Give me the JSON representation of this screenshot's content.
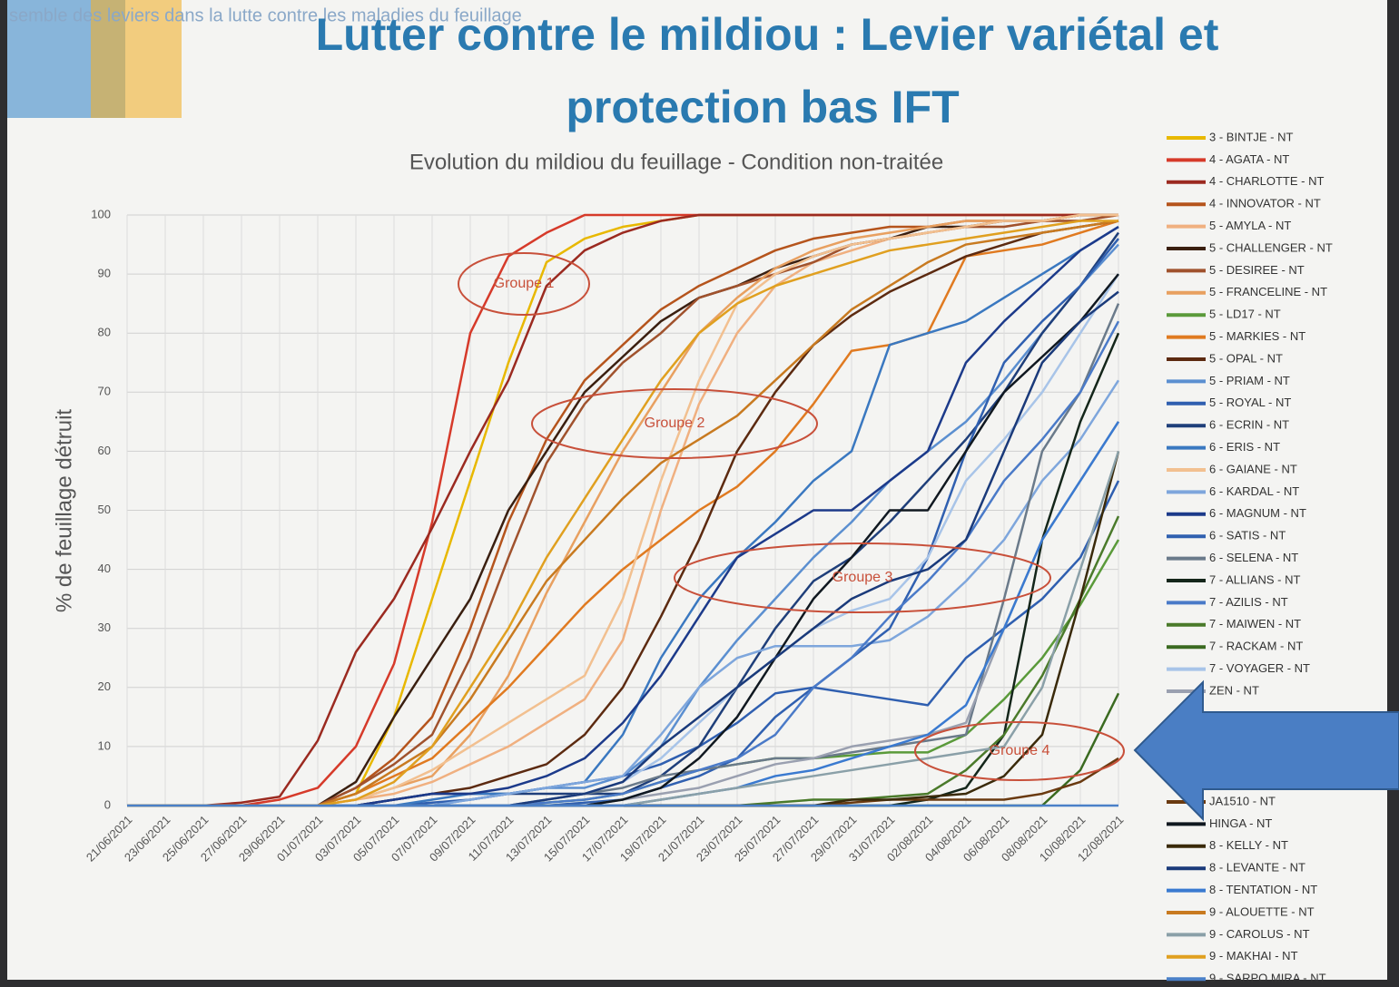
{
  "slide": {
    "header": "semble des leviers dans la lutte contre les maladies du feuillage",
    "title_line1": "Lutter contre le mildiou : Levier variétal et",
    "title_line2": "protection bas IFT"
  },
  "chart_data": {
    "type": "line",
    "title": "Evolution du mildiou du feuillage - Condition non-traitée",
    "y_label": "% de feuillage détruit",
    "categories": [
      "21/06/2021",
      "23/06/2021",
      "25/06/2021",
      "27/06/2021",
      "29/06/2021",
      "01/07/2021",
      "03/07/2021",
      "05/07/2021",
      "07/07/2021",
      "09/07/2021",
      "11/07/2021",
      "13/07/2021",
      "15/07/2021",
      "17/07/2021",
      "19/07/2021",
      "21/07/2021",
      "23/07/2021",
      "25/07/2021",
      "27/07/2021",
      "29/07/2021",
      "31/07/2021",
      "02/08/2021",
      "04/08/2021",
      "06/08/2021",
      "08/08/2021",
      "10/08/2021",
      "12/08/2021"
    ],
    "ylim": [
      0,
      100
    ],
    "yticks": [
      0,
      10,
      20,
      30,
      40,
      50,
      60,
      70,
      80,
      90,
      100
    ],
    "grid": true,
    "annotations": [
      "Groupe 1",
      "Groupe 2",
      "Groupe 3",
      "Groupe 4"
    ],
    "series": [
      {
        "name": "3 - BINTJE - NT",
        "color": "#e8b800",
        "values": [
          0,
          0,
          0,
          0,
          0,
          0,
          2,
          15,
          35,
          55,
          75,
          92,
          96,
          98,
          99,
          100,
          100,
          100,
          100,
          100,
          100,
          100,
          100,
          100,
          100,
          100,
          100
        ]
      },
      {
        "name": "4 - AGATA - NT",
        "color": "#d63a2a",
        "values": [
          0,
          0,
          0,
          0,
          1,
          3,
          10,
          24,
          48,
          80,
          93,
          97,
          100,
          100,
          100,
          100,
          100,
          100,
          100,
          100,
          100,
          100,
          100,
          100,
          100,
          100,
          100
        ]
      },
      {
        "name": "4 - CHARLOTTE - NT",
        "color": "#9b2a20",
        "values": [
          0,
          0,
          0,
          0.5,
          1.5,
          11,
          26,
          35,
          47,
          60,
          72,
          88,
          94,
          97,
          99,
          100,
          100,
          100,
          100,
          100,
          100,
          100,
          100,
          100,
          100,
          100,
          100
        ]
      },
      {
        "name": "4 - INNOVATOR - NT",
        "color": "#b5541c",
        "values": [
          0,
          0,
          0,
          0,
          0,
          0,
          3,
          8,
          15,
          30,
          48,
          62,
          72,
          78,
          84,
          88,
          91,
          94,
          96,
          97,
          98,
          98,
          99,
          99,
          99,
          100,
          100
        ]
      },
      {
        "name": "5 - AMYLA - NT",
        "color": "#f0b080",
        "values": [
          0,
          0,
          0,
          0,
          0,
          0,
          1,
          2,
          4,
          7,
          10,
          14,
          18,
          28,
          50,
          68,
          80,
          88,
          92,
          94,
          96,
          97,
          98,
          98,
          99,
          99,
          100
        ]
      },
      {
        "name": "5 - CHALLENGER - NT",
        "color": "#3a1f10",
        "values": [
          0,
          0,
          0,
          0,
          0,
          0,
          4,
          15,
          25,
          35,
          50,
          60,
          70,
          76,
          82,
          86,
          88,
          91,
          93,
          95,
          96,
          98,
          98,
          99,
          99,
          100,
          100
        ]
      },
      {
        "name": "5 - DESIREE - NT",
        "color": "#a0522d",
        "values": [
          0,
          0,
          0,
          0,
          0,
          0,
          3,
          7,
          12,
          25,
          42,
          58,
          68,
          75,
          80,
          86,
          88,
          90,
          92,
          95,
          96,
          97,
          98,
          98,
          99,
          99,
          100
        ]
      },
      {
        "name": "5 - FRANCELINE - NT",
        "color": "#e8a060",
        "values": [
          0,
          0,
          0,
          0,
          0,
          0,
          1,
          3,
          5,
          12,
          22,
          36,
          48,
          60,
          70,
          80,
          86,
          91,
          94,
          96,
          97,
          98,
          99,
          99,
          99,
          100,
          100
        ]
      },
      {
        "name": "5 - LD17 - NT",
        "color": "#5a9a3a",
        "values": [
          0,
          0,
          0,
          0,
          0,
          0,
          0,
          0,
          0,
          0,
          0,
          0.5,
          1,
          2,
          4,
          6,
          7,
          8,
          8,
          8.5,
          9,
          9,
          12,
          18,
          25,
          34,
          45
        ]
      },
      {
        "name": "5 - MARKIES - NT",
        "color": "#e07a20",
        "values": [
          0,
          0,
          0,
          0,
          0,
          0,
          2,
          5,
          8,
          14,
          20,
          27,
          34,
          40,
          45,
          50,
          54,
          60,
          68,
          77,
          78,
          80,
          93,
          94,
          95,
          97,
          99
        ]
      },
      {
        "name": "5 - OPAL - NT",
        "color": "#5c2a10",
        "values": [
          0,
          0,
          0,
          0,
          0,
          0,
          0,
          1,
          2,
          3,
          5,
          7,
          12,
          20,
          32,
          45,
          60,
          70,
          78,
          83,
          87,
          90,
          93,
          95,
          97,
          98,
          99
        ]
      },
      {
        "name": "5 - PRIAM - NT",
        "color": "#5b8fd0",
        "values": [
          0,
          0,
          0,
          0,
          0,
          0,
          0,
          0,
          0,
          1,
          2,
          3,
          3,
          5,
          10,
          20,
          28,
          35,
          42,
          48,
          55,
          60,
          65,
          72,
          80,
          88,
          95
        ]
      },
      {
        "name": "5 - ROYAL - NT",
        "color": "#2f5fb0",
        "values": [
          0,
          0,
          0,
          0,
          0,
          0,
          0,
          0,
          0.5,
          1,
          2,
          3,
          4,
          5,
          7,
          10,
          14,
          19,
          20,
          19,
          18,
          17,
          25,
          30,
          35,
          42,
          55
        ]
      },
      {
        "name": "6 - ECRIN - NT",
        "color": "#1f3f7a",
        "values": [
          0,
          0,
          0,
          0,
          0,
          0,
          0,
          1,
          2,
          2,
          2,
          2,
          2,
          2,
          5,
          10,
          20,
          30,
          38,
          42,
          48,
          55,
          62,
          70,
          80,
          88,
          97
        ]
      },
      {
        "name": "6 - ERIS - NT",
        "color": "#3a78c0",
        "values": [
          0,
          0,
          0,
          0,
          0,
          0,
          0,
          0,
          1,
          2,
          2,
          3,
          4,
          12,
          25,
          35,
          42,
          48,
          55,
          60,
          78,
          80,
          82,
          86,
          90,
          94,
          98
        ]
      },
      {
        "name": "6 - GAIANE - NT",
        "color": "#f2c090",
        "values": [
          0,
          0,
          0,
          0,
          0,
          0,
          1,
          3,
          6,
          10,
          14,
          18,
          22,
          35,
          55,
          72,
          85,
          90,
          93,
          95,
          96,
          97,
          98,
          99,
          99,
          100,
          100
        ]
      },
      {
        "name": "6 - KARDAL - NT",
        "color": "#7ea6dc",
        "values": [
          0,
          0,
          0,
          0,
          0,
          0,
          0,
          0,
          0,
          1,
          2,
          3,
          4,
          5,
          12,
          20,
          25,
          27,
          27,
          27,
          28,
          32,
          38,
          45,
          55,
          62,
          72
        ]
      },
      {
        "name": "6 - MAGNUM - NT",
        "color": "#1c3a8a",
        "values": [
          0,
          0,
          0,
          0,
          0,
          0,
          0,
          1,
          2,
          2,
          3,
          5,
          8,
          14,
          22,
          32,
          42,
          46,
          50,
          50,
          55,
          60,
          75,
          82,
          88,
          94,
          98
        ]
      },
      {
        "name": "6 - SATIS - NT",
        "color": "#3060b0",
        "values": [
          0,
          0,
          0,
          0,
          0,
          0,
          0,
          0,
          0,
          0,
          0,
          0,
          0.5,
          1,
          3,
          5,
          8,
          15,
          20,
          25,
          30,
          42,
          60,
          75,
          82,
          88,
          96
        ]
      },
      {
        "name": "6 - SELENA - NT",
        "color": "#6a7a8a",
        "values": [
          0,
          0,
          0,
          0,
          0,
          0,
          0,
          0,
          0,
          0,
          0,
          1,
          2,
          3,
          5,
          6,
          7,
          8,
          8,
          9,
          10,
          11,
          12,
          35,
          60,
          70,
          85
        ]
      },
      {
        "name": "7 - ALLIANS - NT",
        "color": "#14261a",
        "values": [
          0,
          0,
          0,
          0,
          0,
          0,
          0,
          0,
          0,
          0,
          0,
          0,
          0,
          0,
          0,
          0,
          0,
          0,
          0,
          0,
          0,
          1,
          3,
          12,
          45,
          65,
          80
        ]
      },
      {
        "name": "7 - AZILIS - NT",
        "color": "#4a7ac8",
        "values": [
          0,
          0,
          0,
          0,
          0,
          0,
          0,
          0,
          0,
          0,
          0,
          0.5,
          1,
          2,
          4,
          6,
          8,
          12,
          20,
          25,
          32,
          38,
          45,
          55,
          62,
          70,
          82
        ]
      },
      {
        "name": "7 - MAIWEN - NT",
        "color": "#4a7a2a",
        "values": [
          0,
          0,
          0,
          0,
          0,
          0,
          0,
          0,
          0,
          0,
          0,
          0,
          0,
          0,
          0,
          0,
          0,
          0.5,
          1,
          1,
          1.5,
          2,
          6,
          12,
          22,
          35,
          49
        ]
      },
      {
        "name": "7 - RACKAM - NT",
        "color": "#3a6a20",
        "values": [
          0,
          0,
          0,
          0,
          0,
          0,
          0,
          0,
          0,
          0,
          0,
          0,
          0,
          0,
          0,
          0,
          0,
          0,
          0,
          0,
          0,
          0,
          0,
          0,
          0,
          6,
          19
        ]
      },
      {
        "name": "7 - VOYAGER - NT",
        "color": "#a8c4e8",
        "values": [
          0,
          0,
          0,
          0,
          0,
          0,
          0,
          0,
          0,
          0,
          0,
          1,
          2,
          4,
          8,
          14,
          20,
          25,
          30,
          33,
          35,
          42,
          55,
          62,
          70,
          80,
          90
        ]
      },
      {
        "name": "ZEN - NT",
        "color": "#9aa0b0",
        "values": [
          0,
          0,
          0,
          0,
          0,
          0,
          0,
          0,
          0,
          0,
          0,
          0,
          0,
          1,
          2,
          3,
          5,
          7,
          8,
          10,
          11,
          12,
          14,
          30,
          45,
          55,
          65
        ]
      },
      {
        "name": "JA1510 - NT",
        "color": "#6a3a10",
        "values": [
          0,
          0,
          0,
          0,
          0,
          0,
          0,
          0,
          0,
          0,
          0,
          0,
          0,
          0,
          0,
          0,
          0,
          0,
          0,
          0.5,
          1,
          1,
          1,
          1,
          2,
          4,
          8
        ]
      },
      {
        "name": "HINGA - NT",
        "color": "#101820",
        "values": [
          0,
          0,
          0,
          0,
          0,
          0,
          0,
          0,
          0,
          0,
          0,
          0,
          0,
          1,
          3,
          8,
          15,
          25,
          35,
          42,
          50,
          50,
          60,
          70,
          76,
          82,
          90
        ]
      },
      {
        "name": "8 - KELLY - NT",
        "color": "#3a2a0a",
        "values": [
          0,
          0,
          0,
          0,
          0,
          0,
          0,
          0,
          0,
          0,
          0,
          0,
          0,
          0,
          0,
          0,
          0,
          0,
          0,
          1,
          1,
          1.5,
          2,
          5,
          12,
          35,
          60
        ]
      },
      {
        "name": "8 - LEVANTE - NT",
        "color": "#1a3a7a",
        "values": [
          0,
          0,
          0,
          0,
          0,
          0,
          0,
          0,
          0,
          0,
          0,
          1,
          2,
          4,
          10,
          15,
          20,
          25,
          30,
          35,
          38,
          40,
          45,
          60,
          75,
          82,
          87
        ]
      },
      {
        "name": "8 - TENTATION - NT",
        "color": "#3a7ad0",
        "values": [
          0,
          0,
          0,
          0,
          0,
          0,
          0,
          0,
          0,
          0,
          0,
          0,
          0,
          0,
          1,
          2,
          3,
          5,
          6,
          8,
          10,
          12,
          17,
          30,
          45,
          55,
          65
        ]
      },
      {
        "name": "9 - ALOUETTE - NT",
        "color": "#c87a20",
        "values": [
          0,
          0,
          0,
          0,
          0,
          0,
          2,
          6,
          10,
          18,
          28,
          38,
          45,
          52,
          58,
          62,
          66,
          72,
          78,
          84,
          88,
          92,
          95,
          96,
          97,
          98,
          99
        ]
      },
      {
        "name": "9 - CAROLUS - NT",
        "color": "#8aa0a8",
        "values": [
          0,
          0,
          0,
          0,
          0,
          0,
          0,
          0,
          0,
          0,
          0,
          0,
          0,
          0,
          1,
          2,
          3,
          4,
          5,
          6,
          7,
          8,
          9,
          10,
          20,
          40,
          60
        ]
      },
      {
        "name": "9 - MAKHAI - NT",
        "color": "#e0a020",
        "values": [
          0,
          0,
          0,
          0,
          0,
          0,
          1,
          4,
          10,
          20,
          30,
          42,
          52,
          62,
          72,
          80,
          85,
          88,
          90,
          92,
          94,
          95,
          96,
          97,
          98,
          99,
          99
        ]
      },
      {
        "name": "9 - SARPO MIRA - NT",
        "color": "#4a80c8",
        "values": [
          0,
          0,
          0,
          0,
          0,
          0,
          0,
          0,
          0,
          0,
          0,
          0,
          0,
          0,
          0,
          0,
          0,
          0,
          0,
          0,
          0,
          0,
          0,
          0,
          0,
          0,
          0
        ]
      }
    ]
  }
}
